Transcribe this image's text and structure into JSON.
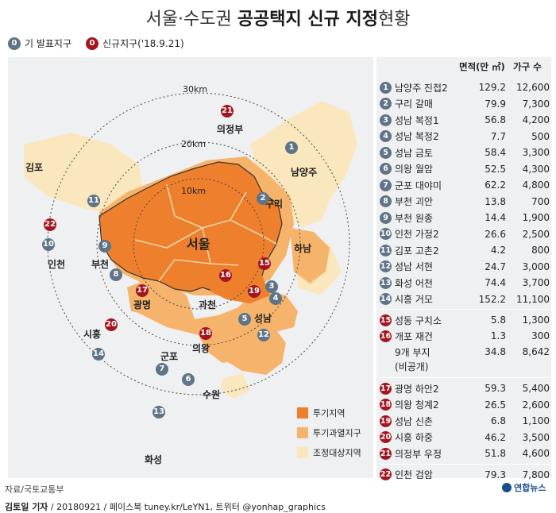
{
  "title": {
    "light": "서울·수도권 ",
    "bold": "공공택지 신규 지정",
    "tail": "현황"
  },
  "legend_top": [
    {
      "num": "0",
      "label": "기 발표지구",
      "color": "blue"
    },
    {
      "num": "0",
      "label": "신규지구('18.9.21)",
      "color": "red"
    }
  ],
  "table_header": {
    "area": "면적(만 ㎡)",
    "households": "가구 수"
  },
  "rows_existing": [
    {
      "num": "1",
      "name": "남양주 진접2",
      "area": "129.2",
      "hh": "12,600"
    },
    {
      "num": "2",
      "name": "구리 갈매",
      "area": "79.9",
      "hh": "7,300"
    },
    {
      "num": "3",
      "name": "성남 복정1",
      "area": "56.8",
      "hh": "4,200"
    },
    {
      "num": "4",
      "name": "성남 복정2",
      "area": "7.7",
      "hh": "500"
    },
    {
      "num": "5",
      "name": "성남 금토",
      "area": "58.4",
      "hh": "3,300"
    },
    {
      "num": "6",
      "name": "의왕 월암",
      "area": "52.5",
      "hh": "4,300"
    },
    {
      "num": "7",
      "name": "군포 대야미",
      "area": "62.2",
      "hh": "4,800"
    },
    {
      "num": "8",
      "name": "부천 괴안",
      "area": "13.8",
      "hh": "700"
    },
    {
      "num": "9",
      "name": "부천 원종",
      "area": "14.4",
      "hh": "1,900"
    },
    {
      "num": "10",
      "name": "인천 가정2",
      "area": "26.6",
      "hh": "2,500"
    },
    {
      "num": "11",
      "name": "김포 고촌2",
      "area": "4.2",
      "hh": "800"
    },
    {
      "num": "12",
      "name": "성남 서현",
      "area": "24.7",
      "hh": "3,000"
    },
    {
      "num": "13",
      "name": "화성 어천",
      "area": "74.4",
      "hh": "3,700"
    },
    {
      "num": "14",
      "name": "시흥 거모",
      "area": "152.2",
      "hh": "11,100"
    }
  ],
  "rows_seoul": [
    {
      "num": "15",
      "name": "성동 구치소",
      "area": "5.8",
      "hh": "1,300"
    },
    {
      "num": "16",
      "name": "개포 재건",
      "area": "1.3",
      "hh": "300"
    },
    {
      "num": "",
      "name": "9개 부지",
      "area": "34.8",
      "hh": "8,642"
    }
  ],
  "seoul_note": "(비공개)",
  "rows_new": [
    {
      "num": "17",
      "name": "광명 하안2",
      "area": "59.3",
      "hh": "5,400"
    },
    {
      "num": "18",
      "name": "의왕 청계2",
      "area": "26.5",
      "hh": "2,600"
    },
    {
      "num": "19",
      "name": "성남 신촌",
      "area": "6.8",
      "hh": "1,100"
    },
    {
      "num": "20",
      "name": "시흥 하중",
      "area": "46.2",
      "hh": "3,500"
    },
    {
      "num": "21",
      "name": "의정부 우정",
      "area": "51.8",
      "hh": "4,600"
    }
  ],
  "row_last": {
    "num": "22",
    "name": "인천 검암",
    "area": "79.3",
    "hh": "7,800"
  },
  "map": {
    "rings": [
      "30km",
      "20km",
      "10km"
    ],
    "cities": {
      "seoul": "서울",
      "uijeongbu": "의정부",
      "gimpo": "김포",
      "namyangju": "남양주",
      "guri": "구리",
      "incheon": "인천",
      "bucheon": "부천",
      "hanam": "하남",
      "gwangmyeong": "광명",
      "gwacheon": "과천",
      "seongnam": "성남",
      "siheung": "시흥",
      "uiwang": "의왕",
      "gunpo": "군포",
      "suwon": "수원",
      "hwaseong": "화성"
    },
    "legend": [
      "투기지역",
      "투기과열지구",
      "조정대상지역"
    ],
    "colors": {
      "speculation": "#ee7f2d",
      "overheated": "#f6b36b",
      "adjustment": "#fbe7bd",
      "blue_marker": "#5f7487",
      "red_marker": "#a3151f"
    }
  },
  "source": "자료/국토교통부",
  "credit": {
    "name": "김토일 기자",
    "rest": " / 20180921 / 페이스북 tuney.kr/LeYN1, 트위터 @yonhap_graphics"
  },
  "logo": "연합뉴스"
}
